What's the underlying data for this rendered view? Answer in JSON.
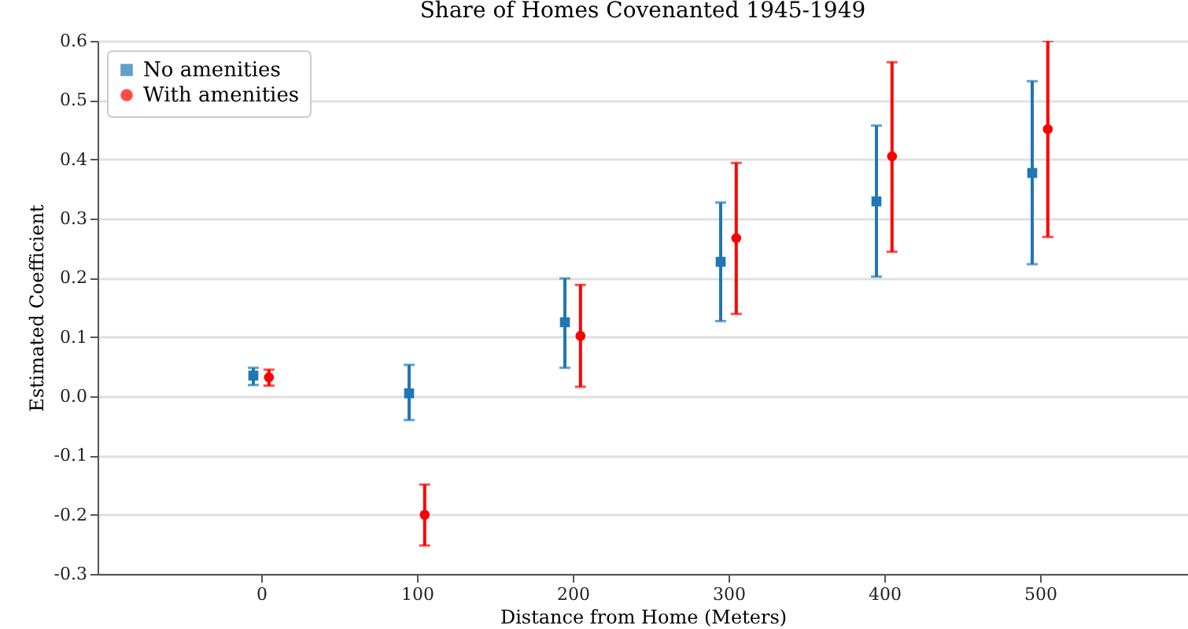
{
  "chart_data": {
    "type": "scatter",
    "title": "Share of Homes Covenanted 1945-1949",
    "xlabel": "Distance from Home (Meters)",
    "ylabel": "Estimated Coefficient",
    "xlim": [
      -105,
      595
    ],
    "xticks": [
      0,
      100,
      200,
      300,
      400,
      500
    ],
    "ylim": [
      -0.3,
      0.6
    ],
    "yticks": [
      -0.3,
      -0.2,
      -0.1,
      {
        "value": 0,
        "label": "0.0"
      },
      0.1,
      0.2,
      0.3,
      0.4,
      0.5,
      0.6
    ],
    "grid": "y",
    "legend": "top left",
    "series": [
      {
        "name": "No amenities",
        "color": "#1f77b4",
        "marker": "square",
        "x": [
          -5,
          95,
          195,
          295,
          395,
          495
        ],
        "values": [
          0.035,
          0.005,
          0.125,
          0.227,
          0.329,
          0.377
        ],
        "errors": [
          [
            0.019,
            0.048
          ],
          [
            -0.04,
            0.053
          ],
          [
            0.048,
            0.199
          ],
          [
            0.127,
            0.327
          ],
          [
            0.202,
            0.457
          ],
          [
            0.223,
            0.532
          ]
        ]
      },
      {
        "name": "With amenities",
        "color": "#ff0000",
        "marker": "circle",
        "x": [
          5,
          105,
          205,
          305,
          405,
          505
        ],
        "values": [
          0.032,
          -0.2,
          0.102,
          0.267,
          0.405,
          0.451
        ],
        "errors": [
          [
            0.018,
            0.045
          ],
          [
            -0.252,
            -0.149
          ],
          [
            0.016,
            0.188
          ],
          [
            0.139,
            0.394
          ],
          [
            0.244,
            0.564
          ],
          [
            0.269,
            0.6
          ]
        ]
      }
    ]
  }
}
